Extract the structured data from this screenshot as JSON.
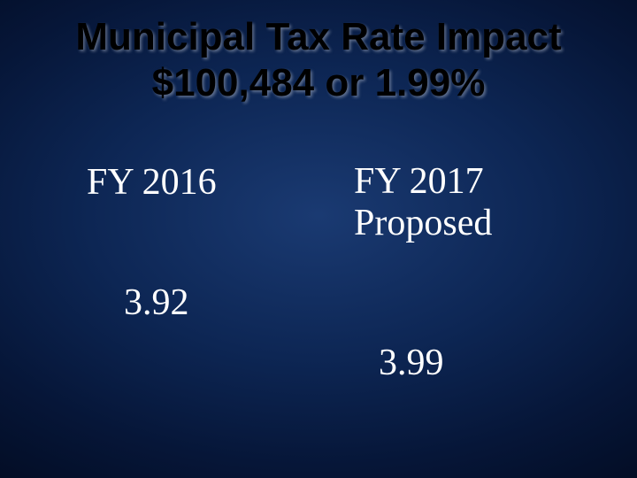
{
  "slide": {
    "title_line1": "Municipal Tax Rate Impact",
    "title_line2": "$100,484 or 1.99%",
    "background": {
      "gradient_center": "#1a3a72",
      "gradient_mid": "#0d2654",
      "gradient_outer": "#061638",
      "gradient_edge": "#020a1f"
    },
    "title_style": {
      "font_family": "Arial",
      "font_weight": "bold",
      "font_size_pt": 33,
      "color": "#000000",
      "shadow_color": "rgba(150,160,180,0.6)"
    },
    "body_style": {
      "font_family": "Times New Roman",
      "font_size_pt": 32,
      "color": "#ffffff"
    },
    "columns": [
      {
        "header": "FY 2016",
        "value": "3.92"
      },
      {
        "header_line1": "FY 2017",
        "header_line2": " Proposed",
        "value": "3.99"
      }
    ]
  }
}
